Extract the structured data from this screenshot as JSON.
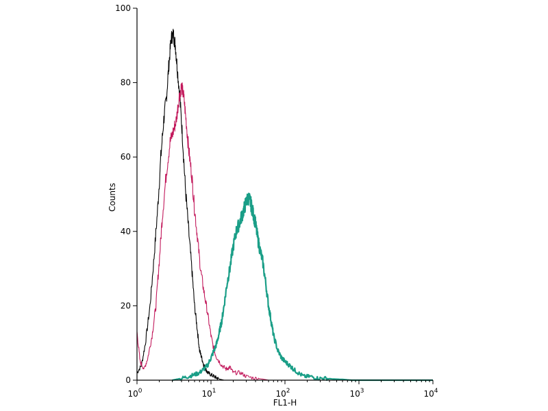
{
  "chart_data": {
    "type": "line",
    "title": "",
    "xlabel": "FL1-H",
    "ylabel": "Counts",
    "xscale": "log",
    "xlim": [
      1,
      10000
    ],
    "ylim": [
      0,
      100
    ],
    "grid": false,
    "legend": "none",
    "x_ticks": [
      {
        "value": 1,
        "base": "10",
        "exp": "0"
      },
      {
        "value": 10,
        "base": "10",
        "exp": "1"
      },
      {
        "value": 100,
        "base": "10",
        "exp": "2"
      },
      {
        "value": 1000,
        "base": "10",
        "exp": "3"
      },
      {
        "value": 10000,
        "base": "10",
        "exp": "4"
      }
    ],
    "y_ticks": [
      {
        "value": 0,
        "label": "0"
      },
      {
        "value": 20,
        "label": "20"
      },
      {
        "value": 40,
        "label": "40"
      },
      {
        "value": 60,
        "label": "60"
      },
      {
        "value": 80,
        "label": "80"
      },
      {
        "value": 100,
        "label": "100"
      }
    ],
    "series": [
      {
        "color": "#000000",
        "x": [
          1.0,
          1.15,
          1.3,
          1.5,
          1.7,
          1.9,
          2.1,
          2.3,
          2.5,
          2.7,
          2.9,
          3.1,
          3.3,
          3.5,
          3.8,
          4.1,
          4.5,
          5.0,
          5.5,
          6.0,
          6.5,
          7.0,
          7.5,
          8.0,
          8.5,
          9.0,
          10.0,
          11.0,
          12.0,
          13.0,
          15.0
        ],
        "y": [
          2,
          4,
          10,
          20,
          33,
          46,
          60,
          70,
          76,
          85,
          92,
          93,
          90,
          84,
          76,
          66,
          52,
          40,
          30,
          20,
          14,
          8,
          6,
          4,
          3,
          2,
          1.5,
          1,
          0.6,
          0.3,
          0
        ]
      },
      {
        "color": "#c2185b",
        "x": [
          1.0,
          1.1,
          1.25,
          1.4,
          1.6,
          1.8,
          2.0,
          2.2,
          2.5,
          2.8,
          3.1,
          3.4,
          3.7,
          4.0,
          4.3,
          4.6,
          5.0,
          5.5,
          6.0,
          6.6,
          7.2,
          8.0,
          9.0,
          10.0,
          11.0,
          12.0,
          14.0,
          16.0,
          18.0,
          20.0,
          25.0,
          30.0,
          40.0,
          50.0,
          60.0
        ],
        "y": [
          13,
          5,
          3,
          6,
          12,
          20,
          32,
          44,
          56,
          64,
          67,
          70,
          76,
          79,
          76,
          70,
          62,
          55,
          46,
          38,
          30,
          24,
          18,
          12,
          8,
          6,
          4,
          3,
          3.5,
          2,
          2,
          1,
          0.5,
          0.3,
          0
        ]
      },
      {
        "color": "#1a9e87",
        "x": [
          3.0,
          4.0,
          5.0,
          6.0,
          7.0,
          8.0,
          9.0,
          10.0,
          11.0,
          12.0,
          13.0,
          14.0,
          15.0,
          16.5,
          18.0,
          20.0,
          22.0,
          24.0,
          26.0,
          28.0,
          30.0,
          32.0,
          34.0,
          36.0,
          38.0,
          40.0,
          43.0,
          46.0,
          50.0,
          55.0,
          60.0,
          65.0,
          70.0,
          80.0,
          90.0,
          100.0,
          115.0,
          130.0,
          150.0,
          180.0,
          220.0,
          280.0,
          350.0,
          450.0,
          600.0,
          800.0,
          1000.0,
          2000.0,
          5000.0,
          10000.0
        ],
        "y": [
          0,
          0.5,
          1,
          1.5,
          2,
          3,
          4,
          6,
          8,
          10,
          13,
          16,
          20,
          26,
          30,
          36,
          40,
          42,
          44,
          46,
          48,
          49,
          48,
          46,
          44,
          42,
          38,
          35,
          32,
          26,
          20,
          16,
          12,
          8,
          6,
          5,
          4,
          3,
          2,
          1,
          1,
          0.5,
          0.5,
          0.3,
          0.2,
          0,
          0,
          0,
          0,
          0
        ]
      }
    ]
  }
}
